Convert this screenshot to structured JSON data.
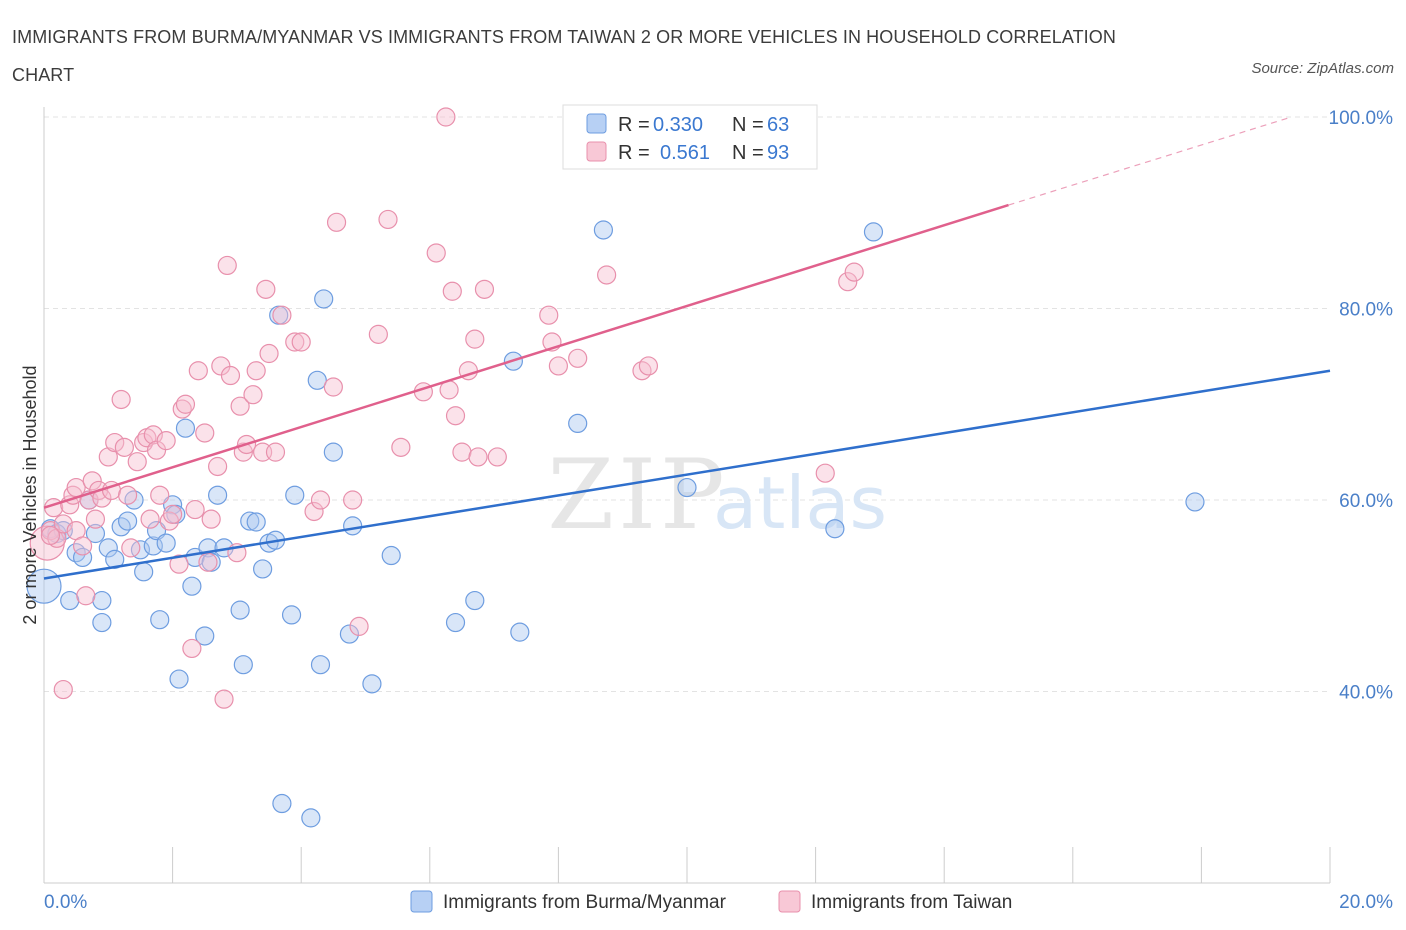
{
  "title": "IMMIGRANTS FROM BURMA/MYANMAR VS IMMIGRANTS FROM TAIWAN 2 OR MORE VEHICLES IN HOUSEHOLD CORRELATION CHART",
  "source": "Source: ZipAtlas.com",
  "watermark": {
    "zip": "ZIP",
    "atlas": "atlas"
  },
  "chart_data": {
    "type": "scatter",
    "ylabel": "2 or more Vehicles in Household",
    "xlim": [
      0,
      20
    ],
    "ylim": [
      20,
      100
    ],
    "x_ticks": [
      {
        "value": 0,
        "label": "0.0%"
      },
      {
        "value": 20,
        "label": "20.0%"
      }
    ],
    "y_ticks": [
      {
        "value": 100,
        "label": "100.0%"
      },
      {
        "value": 80,
        "label": "80.0%"
      },
      {
        "value": 60,
        "label": "60.0%"
      },
      {
        "value": 40,
        "label": "40.0%"
      }
    ],
    "grid": true,
    "legend_position": "top-center",
    "legend": [
      {
        "r_label": "R =",
        "r_value": "0.330",
        "n_label": "N =",
        "n_value": "63"
      },
      {
        "r_label": "R =",
        "r_value": "0.561",
        "n_label": "N =",
        "n_value": "93"
      }
    ],
    "series": [
      {
        "name": "Immigrants from Burma/Myanmar",
        "color": "#6e9de0",
        "fill": "#aac8f0",
        "line_color": "#2f6fcc",
        "trend": {
          "x": [
            0,
            20
          ],
          "y": [
            51.8,
            73.5
          ]
        },
        "points": [
          [
            0.0,
            51.0
          ],
          [
            0.1,
            57.0
          ],
          [
            0.2,
            56.5
          ],
          [
            0.3,
            56.8
          ],
          [
            0.4,
            49.5
          ],
          [
            0.5,
            54.5
          ],
          [
            0.6,
            54.0
          ],
          [
            0.7,
            60.0
          ],
          [
            0.8,
            56.5
          ],
          [
            0.9,
            49.5
          ],
          [
            0.9,
            47.2
          ],
          [
            1.0,
            55.0
          ],
          [
            1.1,
            53.8
          ],
          [
            1.2,
            57.2
          ],
          [
            1.3,
            57.8
          ],
          [
            1.4,
            60.0
          ],
          [
            1.5,
            54.8
          ],
          [
            1.55,
            52.5
          ],
          [
            1.7,
            55.2
          ],
          [
            1.75,
            56.8
          ],
          [
            1.8,
            47.5
          ],
          [
            1.9,
            55.5
          ],
          [
            2.0,
            59.5
          ],
          [
            2.05,
            58.5
          ],
          [
            2.1,
            41.3
          ],
          [
            2.2,
            67.5
          ],
          [
            2.3,
            51.0
          ],
          [
            2.35,
            54.0
          ],
          [
            2.5,
            45.8
          ],
          [
            2.55,
            55.0
          ],
          [
            2.6,
            53.5
          ],
          [
            2.7,
            60.5
          ],
          [
            2.8,
            55.0
          ],
          [
            3.05,
            48.5
          ],
          [
            3.1,
            42.8
          ],
          [
            3.2,
            57.8
          ],
          [
            3.3,
            57.7
          ],
          [
            3.4,
            52.8
          ],
          [
            3.5,
            55.5
          ],
          [
            3.6,
            55.8
          ],
          [
            3.65,
            79.3
          ],
          [
            3.7,
            28.3
          ],
          [
            3.85,
            48.0
          ],
          [
            3.9,
            60.5
          ],
          [
            4.15,
            26.8
          ],
          [
            4.25,
            72.5
          ],
          [
            4.3,
            42.8
          ],
          [
            4.35,
            81.0
          ],
          [
            4.5,
            65.0
          ],
          [
            4.75,
            46.0
          ],
          [
            4.8,
            57.3
          ],
          [
            5.1,
            40.8
          ],
          [
            5.4,
            54.2
          ],
          [
            6.4,
            47.2
          ],
          [
            6.7,
            49.5
          ],
          [
            7.3,
            74.5
          ],
          [
            7.4,
            46.2
          ],
          [
            8.3,
            68.0
          ],
          [
            8.7,
            88.2
          ],
          [
            10.0,
            61.3
          ],
          [
            12.3,
            57.0
          ],
          [
            12.9,
            88.0
          ],
          [
            17.9,
            59.8
          ]
        ],
        "big_points": [
          [
            0.0,
            51.0
          ]
        ]
      },
      {
        "name": "Immigrants from Taiwan",
        "color": "#e890ac",
        "fill": "#f6bfd0",
        "line_color": "#e0608c",
        "trend": {
          "x": [
            0,
            15.0
          ],
          "y": [
            59.2,
            90.8
          ]
        },
        "trend_dash": {
          "x": [
            15.0,
            19.4
          ],
          "y": [
            90.8,
            100.0
          ]
        },
        "points": [
          [
            0.05,
            55.5
          ],
          [
            0.1,
            56.8
          ],
          [
            0.15,
            59.2
          ],
          [
            0.2,
            56.0
          ],
          [
            0.3,
            57.5
          ],
          [
            0.4,
            59.5
          ],
          [
            0.45,
            60.5
          ],
          [
            0.5,
            61.3
          ],
          [
            0.5,
            56.8
          ],
          [
            0.6,
            55.2
          ],
          [
            0.65,
            50.0
          ],
          [
            0.7,
            60.0
          ],
          [
            0.75,
            62.0
          ],
          [
            0.8,
            58.0
          ],
          [
            0.85,
            61.0
          ],
          [
            0.9,
            60.2
          ],
          [
            1.0,
            64.5
          ],
          [
            1.05,
            61.0
          ],
          [
            1.1,
            66.0
          ],
          [
            1.2,
            70.5
          ],
          [
            1.25,
            65.5
          ],
          [
            1.3,
            60.5
          ],
          [
            1.35,
            55.0
          ],
          [
            1.45,
            64.0
          ],
          [
            1.55,
            66.0
          ],
          [
            1.6,
            66.5
          ],
          [
            1.65,
            58.0
          ],
          [
            1.7,
            66.8
          ],
          [
            1.75,
            65.2
          ],
          [
            1.8,
            60.5
          ],
          [
            1.9,
            66.2
          ],
          [
            1.95,
            57.8
          ],
          [
            2.0,
            58.5
          ],
          [
            2.1,
            53.3
          ],
          [
            2.15,
            69.5
          ],
          [
            2.2,
            70.0
          ],
          [
            2.3,
            44.5
          ],
          [
            2.35,
            59.0
          ],
          [
            2.4,
            73.5
          ],
          [
            2.5,
            67.0
          ],
          [
            2.55,
            53.5
          ],
          [
            2.6,
            58.0
          ],
          [
            2.7,
            63.5
          ],
          [
            2.75,
            74.0
          ],
          [
            2.8,
            39.2
          ],
          [
            2.85,
            84.5
          ],
          [
            2.9,
            73.0
          ],
          [
            3.0,
            54.5
          ],
          [
            3.05,
            69.8
          ],
          [
            3.1,
            65.0
          ],
          [
            3.15,
            65.8
          ],
          [
            3.25,
            71.0
          ],
          [
            3.3,
            73.5
          ],
          [
            3.4,
            65.0
          ],
          [
            3.45,
            82.0
          ],
          [
            3.5,
            75.3
          ],
          [
            3.6,
            65.0
          ],
          [
            3.7,
            79.3
          ],
          [
            3.9,
            76.5
          ],
          [
            4.0,
            76.5
          ],
          [
            4.2,
            58.8
          ],
          [
            4.3,
            60.0
          ],
          [
            4.5,
            71.8
          ],
          [
            4.55,
            89.0
          ],
          [
            4.8,
            60.0
          ],
          [
            4.9,
            46.8
          ],
          [
            5.2,
            77.3
          ],
          [
            5.35,
            89.3
          ],
          [
            5.55,
            65.5
          ],
          [
            5.9,
            71.3
          ],
          [
            6.1,
            85.8
          ],
          [
            6.3,
            71.5
          ],
          [
            6.35,
            81.8
          ],
          [
            6.4,
            68.8
          ],
          [
            6.5,
            65.0
          ],
          [
            6.6,
            73.5
          ],
          [
            6.7,
            76.8
          ],
          [
            6.75,
            64.5
          ],
          [
            6.85,
            82.0
          ],
          [
            7.05,
            64.5
          ],
          [
            6.25,
            100.0
          ],
          [
            7.85,
            79.3
          ],
          [
            7.9,
            76.5
          ],
          [
            8.0,
            74.0
          ],
          [
            8.3,
            74.8
          ],
          [
            8.75,
            83.5
          ],
          [
            9.3,
            73.5
          ],
          [
            9.4,
            74.0
          ],
          [
            12.15,
            62.8
          ],
          [
            12.5,
            82.8
          ],
          [
            12.6,
            83.8
          ],
          [
            0.3,
            40.2
          ],
          [
            0.1,
            56.3
          ]
        ],
        "big_points": [
          [
            0.05,
            55.5
          ]
        ]
      }
    ]
  }
}
